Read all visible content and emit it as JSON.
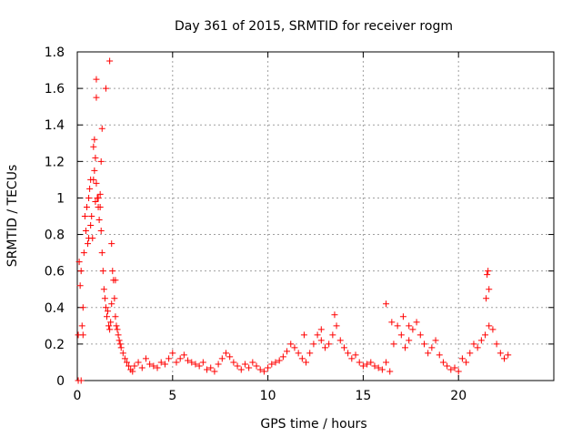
{
  "chart_data": {
    "type": "scatter",
    "title": "Day 361 of 2015, SRMTID for receiver rogm",
    "xlabel": "GPS time / hours",
    "ylabel": "SRMTID / TECUs",
    "xlim": [
      0,
      25
    ],
    "ylim": [
      0,
      1.8
    ],
    "x_ticks": [
      "0",
      "5",
      "10",
      "15",
      "20"
    ],
    "y_ticks": [
      "0",
      "0.2",
      "0.4",
      "0.6",
      "0.8",
      "1",
      "1.2",
      "1.4",
      "1.6",
      "1.8"
    ],
    "grid": true,
    "marker": "+",
    "color": "#ff0000",
    "series": [
      {
        "x": [
          0.05,
          0.1,
          0.15,
          0.2,
          0.25,
          0.3,
          0.35,
          0.4,
          0.45,
          0.5,
          0.55,
          0.6,
          0.65,
          0.7,
          0.75,
          0.8,
          0.85,
          0.9,
          0.95,
          1.0,
          1.05,
          1.1,
          1.15,
          1.2,
          1.25,
          1.3,
          1.35,
          1.4,
          1.45,
          1.5,
          1.55,
          1.6,
          1.65,
          1.7,
          1.75,
          1.8,
          1.85,
          1.9,
          1.95,
          2.0,
          2.05,
          2.1,
          2.15,
          2.2,
          2.25,
          2.3,
          2.4,
          2.5,
          2.6,
          2.7,
          2.8,
          2.9,
          3.0,
          3.2,
          3.4,
          3.6,
          3.8,
          4.0,
          4.2,
          4.4,
          4.6,
          4.8,
          5.0,
          5.2,
          5.4,
          5.6,
          5.8,
          6.0,
          6.2,
          6.4,
          6.6,
          6.8,
          7.0,
          7.2,
          7.4,
          7.6,
          7.8,
          8.0,
          8.2,
          8.4,
          8.6,
          8.8,
          9.0,
          9.2,
          9.4,
          9.6,
          9.8,
          10.0,
          10.2,
          10.4,
          10.6,
          10.8,
          11.0,
          11.2,
          11.4,
          11.6,
          11.8,
          12.0,
          12.2,
          12.4,
          12.6,
          12.8,
          13.0,
          13.2,
          13.4,
          13.6,
          13.8,
          14.0,
          14.2,
          14.4,
          14.6,
          14.8,
          15.0,
          15.2,
          15.4,
          15.6,
          15.8,
          16.0,
          16.2,
          16.4,
          16.6,
          16.8,
          17.0,
          17.2,
          17.4,
          17.6,
          17.8,
          18.0,
          18.2,
          18.4,
          18.6,
          18.8,
          19.0,
          19.2,
          19.4,
          19.6,
          19.8,
          20.0,
          20.2,
          20.4,
          20.6,
          20.8,
          21.0,
          21.2,
          21.4,
          21.6,
          21.8,
          22.0,
          22.2,
          22.4,
          22.6,
          0.9,
          1.0,
          1.0,
          1.1,
          1.2,
          0.95,
          0.85,
          1.3,
          0.7,
          0.6,
          1.5,
          1.7,
          1.25,
          0.05,
          0.2,
          0.3,
          1.8,
          2.0,
          21.5,
          21.55,
          21.6,
          21.45,
          16.2,
          16.5,
          17.1,
          17.4,
          13.5,
          12.8,
          11.9
        ],
        "y": [
          0.0,
          0.65,
          0.52,
          0.6,
          0.3,
          0.4,
          0.7,
          0.9,
          0.82,
          0.95,
          0.75,
          1.0,
          1.05,
          0.85,
          0.9,
          0.78,
          1.1,
          1.15,
          1.22,
          1.08,
          1.0,
          0.95,
          0.88,
          1.02,
          0.82,
          0.7,
          0.6,
          0.5,
          0.45,
          0.4,
          0.35,
          0.38,
          0.3,
          0.28,
          0.32,
          0.42,
          0.6,
          0.55,
          0.45,
          0.35,
          0.3,
          0.28,
          0.25,
          0.22,
          0.2,
          0.18,
          0.15,
          0.12,
          0.1,
          0.08,
          0.06,
          0.05,
          0.08,
          0.1,
          0.07,
          0.12,
          0.09,
          0.08,
          0.07,
          0.1,
          0.09,
          0.12,
          0.15,
          0.1,
          0.12,
          0.14,
          0.11,
          0.1,
          0.09,
          0.08,
          0.1,
          0.06,
          0.07,
          0.05,
          0.09,
          0.12,
          0.15,
          0.13,
          0.1,
          0.08,
          0.06,
          0.09,
          0.07,
          0.1,
          0.08,
          0.06,
          0.05,
          0.07,
          0.09,
          0.1,
          0.11,
          0.13,
          0.16,
          0.2,
          0.18,
          0.15,
          0.12,
          0.1,
          0.15,
          0.2,
          0.25,
          0.22,
          0.18,
          0.2,
          0.25,
          0.3,
          0.22,
          0.18,
          0.15,
          0.12,
          0.14,
          0.1,
          0.08,
          0.09,
          0.1,
          0.08,
          0.07,
          0.06,
          0.1,
          0.05,
          0.2,
          0.3,
          0.25,
          0.18,
          0.22,
          0.28,
          0.32,
          0.25,
          0.2,
          0.15,
          0.18,
          0.22,
          0.14,
          0.1,
          0.08,
          0.06,
          0.07,
          0.05,
          0.12,
          0.1,
          0.15,
          0.2,
          0.18,
          0.22,
          0.25,
          0.3,
          0.28,
          0.2,
          0.15,
          0.12,
          0.14,
          1.32,
          1.55,
          1.65,
          1.0,
          0.95,
          0.98,
          1.28,
          1.38,
          1.1,
          0.78,
          1.6,
          1.75,
          1.2,
          0.25,
          0.0,
          0.25,
          0.75,
          0.55,
          0.58,
          0.6,
          0.5,
          0.45,
          0.42,
          0.32,
          0.35,
          0.3,
          0.36,
          0.28,
          0.25
        ]
      }
    ]
  }
}
